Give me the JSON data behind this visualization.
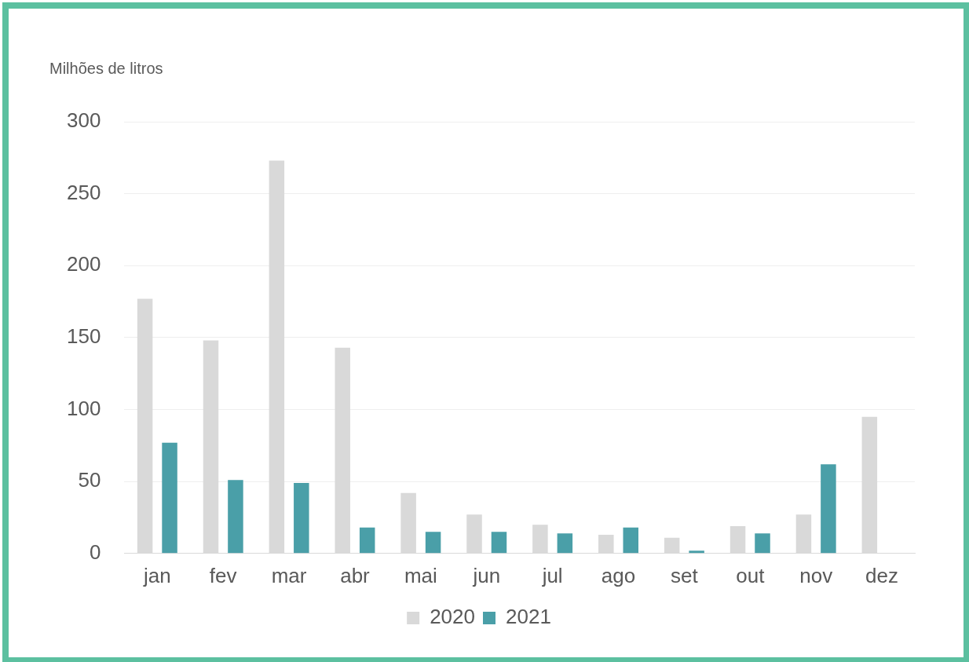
{
  "chart_data": {
    "type": "bar",
    "ylabel": "Milhões de litros",
    "categories": [
      "jan",
      "fev",
      "mar",
      "abr",
      "mai",
      "jun",
      "jul",
      "ago",
      "set",
      "out",
      "nov",
      "dez"
    ],
    "series": [
      {
        "name": "2020",
        "color": "#d9d9d9",
        "values": [
          177,
          148,
          273,
          143,
          42,
          27,
          20,
          13,
          11,
          19,
          27,
          95
        ]
      },
      {
        "name": "2021",
        "color": "#4a9fa8",
        "values": [
          77,
          51,
          49,
          18,
          15,
          15,
          14,
          18,
          2,
          14,
          62,
          null
        ]
      }
    ],
    "ylim": [
      0,
      300
    ],
    "yticks": [
      0,
      50,
      100,
      150,
      200,
      250,
      300
    ],
    "grid": "y",
    "legend": "bottom"
  }
}
